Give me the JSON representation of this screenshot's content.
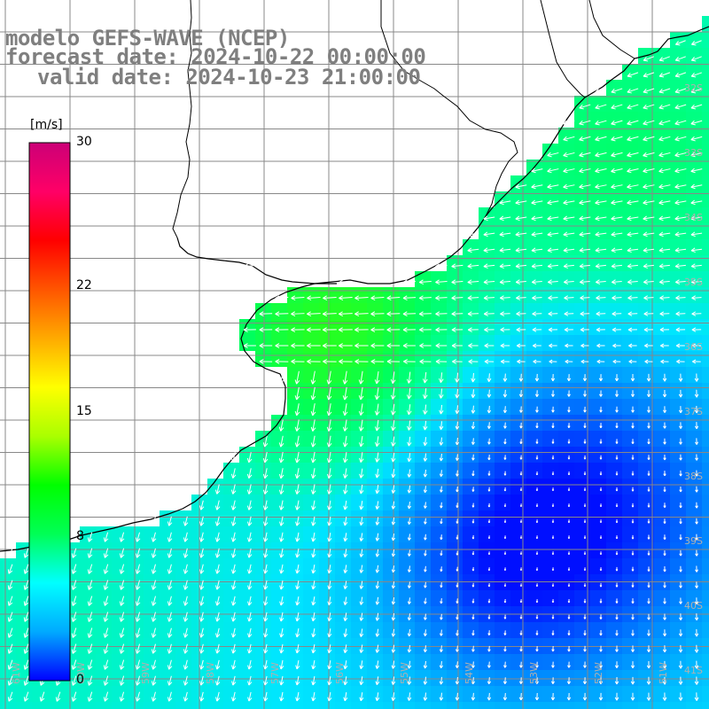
{
  "title": {
    "line1": "modelo GEFS-WAVE (NCEP)",
    "line2": "forecast date: 2024-10-22 00:00:00",
    "line3": "valid date: 2024-10-23 21:00:00"
  },
  "colorbar": {
    "unit": "[m/s]",
    "ticks": [
      {
        "label": "30",
        "value": 30
      },
      {
        "label": "22",
        "value": 22
      },
      {
        "label": "15",
        "value": 15
      },
      {
        "label": "8",
        "value": 8
      },
      {
        "label": "0",
        "value": 0
      }
    ],
    "colors": [
      "#0000ff",
      "#00aaff",
      "#00ffff",
      "#00ff55",
      "#00ff00",
      "#aaff00",
      "#ffff00",
      "#ffaa00",
      "#ff5500",
      "#ff0000",
      "#ff0066",
      "#cc0077"
    ]
  },
  "lat_labels": [
    "32S",
    "33S",
    "34S",
    "35S",
    "36S",
    "37S",
    "38S",
    "39S",
    "40S",
    "41S"
  ],
  "lon_labels": [
    "61W",
    "60W",
    "59W",
    "58W",
    "57W",
    "56W",
    "55W",
    "54W",
    "53W",
    "52W",
    "51W"
  ],
  "legend_colors": {
    "grid": "#888888",
    "coast": "#000000",
    "text_gray": "#7f7f7f",
    "lat_label": "#b0b0b0"
  }
}
